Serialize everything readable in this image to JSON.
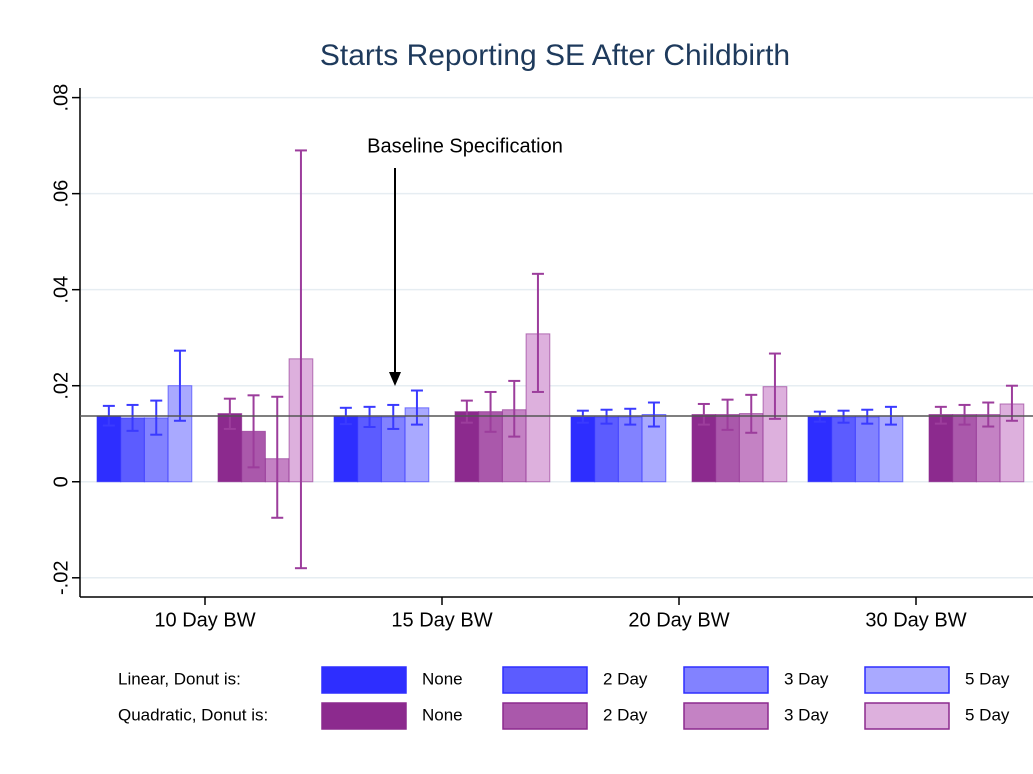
{
  "chart_data": {
    "type": "bar",
    "title": "Starts Reporting SE After Childbirth",
    "categories": [
      "10 Day BW",
      "15 Day BW",
      "20 Day BW",
      "30 Day BW"
    ],
    "ylim": [
      -0.024,
      0.082
    ],
    "yticks": [
      {
        "value": -0.02,
        "label": "-.02"
      },
      0,
      {
        "value": 0.02,
        "label": ".02"
      },
      {
        "value": 0.04,
        "label": ".04"
      },
      {
        "value": 0.06,
        "label": ".06"
      },
      {
        "value": 0.08,
        "label": ".08"
      }
    ],
    "grid": true,
    "reference_line": 0.0137,
    "annotation": "Baseline Specification",
    "series_groups": [
      {
        "name": "Linear, Donut is:",
        "error_color": "#3a3aff",
        "series": [
          {
            "name": "None",
            "color": "#2e2eff",
            "values": [
              0.0137,
              0.0137,
              0.0135,
              0.0135
            ],
            "lower": [
              0.0117,
              0.012,
              0.0123,
              0.0125
            ],
            "upper": [
              0.0158,
              0.0154,
              0.0148,
              0.0146
            ]
          },
          {
            "name": "2 Day",
            "color": "#5c5cff",
            "values": [
              0.0133,
              0.0135,
              0.0135,
              0.0135
            ],
            "lower": [
              0.0106,
              0.0114,
              0.0121,
              0.0123
            ],
            "upper": [
              0.016,
              0.0156,
              0.015,
              0.0148
            ]
          },
          {
            "name": "3 Day",
            "color": "#8282ff",
            "values": [
              0.0133,
              0.0135,
              0.0135,
              0.0135
            ],
            "lower": [
              0.0098,
              0.011,
              0.0119,
              0.0121
            ],
            "upper": [
              0.0169,
              0.016,
              0.0152,
              0.015
            ]
          },
          {
            "name": "5 Day",
            "color": "#a9a9ff",
            "values": [
              0.02,
              0.0154,
              0.014,
              0.0137
            ],
            "lower": [
              0.0127,
              0.0119,
              0.0115,
              0.0119
            ],
            "upper": [
              0.0273,
              0.019,
              0.0165,
              0.0156
            ]
          }
        ]
      },
      {
        "name": "Quadratic, Donut is:",
        "error_color": "#9c3d9c",
        "series": [
          {
            "name": "None",
            "color": "#8c2a8e",
            "values": [
              0.0142,
              0.0146,
              0.014,
              0.014
            ],
            "lower": [
              0.011,
              0.0123,
              0.0119,
              0.0121
            ],
            "upper": [
              0.0173,
              0.0169,
              0.0162,
              0.0156
            ]
          },
          {
            "name": "2 Day",
            "color": "#aa58ab",
            "values": [
              0.0105,
              0.0146,
              0.014,
              0.014
            ],
            "lower": [
              0.003,
              0.0104,
              0.0108,
              0.0119
            ],
            "upper": [
              0.018,
              0.0187,
              0.0171,
              0.016
            ]
          },
          {
            "name": "3 Day",
            "color": "#c482c4",
            "values": [
              0.0048,
              0.015,
              0.0142,
              0.014
            ],
            "lower": [
              -0.0075,
              0.0094,
              0.0102,
              0.0115
            ],
            "upper": [
              0.0177,
              0.021,
              0.0181,
              0.0165
            ]
          },
          {
            "name": "5 Day",
            "color": "#ddb0dd",
            "values": [
              0.0256,
              0.0308,
              0.0198,
              0.0162
            ],
            "lower": [
              -0.018,
              0.0187,
              0.0131,
              0.0127
            ],
            "upper": [
              0.069,
              0.0433,
              0.0267,
              0.02
            ]
          }
        ]
      }
    ]
  }
}
